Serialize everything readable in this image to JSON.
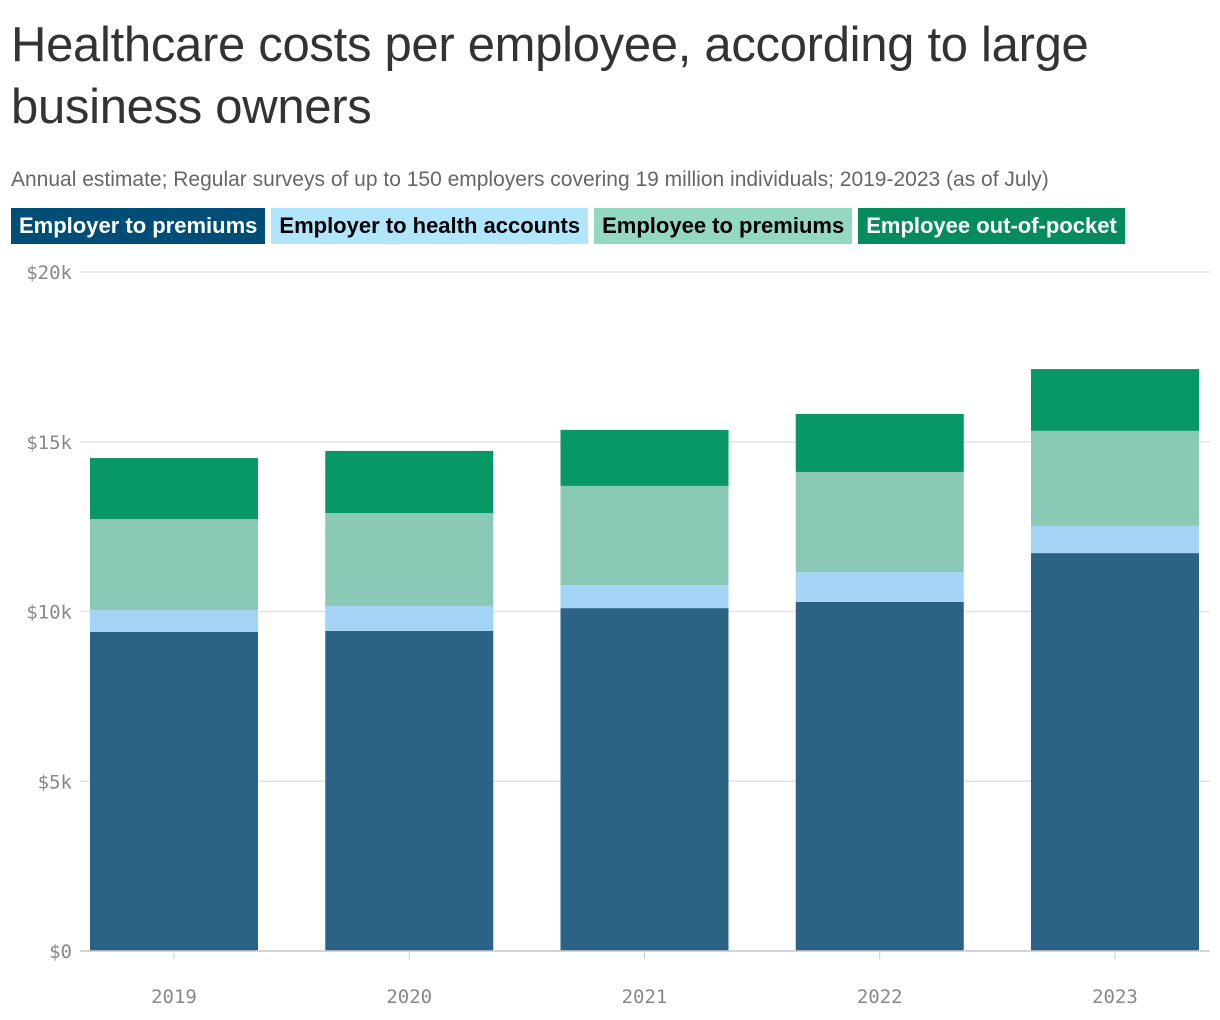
{
  "title": "Healthcare costs per employee, according to large business owners",
  "subtitle": "Annual estimate; Regular surveys of up to 150 employers covering 19 million individuals; 2019-2023 (as of July)",
  "chart_data": {
    "type": "bar",
    "stacked": true,
    "categories": [
      "2019",
      "2020",
      "2021",
      "2022",
      "2023"
    ],
    "series": [
      {
        "name": "Employer to premiums",
        "color": "#2b6387",
        "legend_color": "#004e78",
        "legend_text": "#ffffff",
        "values": [
          9.4,
          9.43,
          10.1,
          10.28,
          11.72
        ]
      },
      {
        "name": "Employer to health accounts",
        "color": "#a3d4f5",
        "legend_color": "#b0e5fc",
        "legend_text": "#000000",
        "values": [
          0.64,
          0.73,
          0.68,
          0.88,
          0.8
        ]
      },
      {
        "name": "Employee to premiums",
        "color": "#8ac9b6",
        "legend_color": "#94d8c4",
        "legend_text": "#000000",
        "values": [
          2.68,
          2.74,
          2.92,
          2.95,
          2.8
        ]
      },
      {
        "name": "Employee out-of-pocket",
        "color": "#079865",
        "legend_color": "#058b5c",
        "legend_text": "#ffffff",
        "values": [
          1.8,
          1.83,
          1.65,
          1.71,
          1.82
        ]
      }
    ],
    "unit": "thousands of dollars",
    "ylim": [
      0,
      20
    ],
    "yticks": [
      0,
      5,
      10,
      15,
      20
    ],
    "ytick_labels": [
      "$0",
      "$5k",
      "$10k",
      "$15k",
      "$20k"
    ],
    "grid": true,
    "legend": "top-left"
  }
}
